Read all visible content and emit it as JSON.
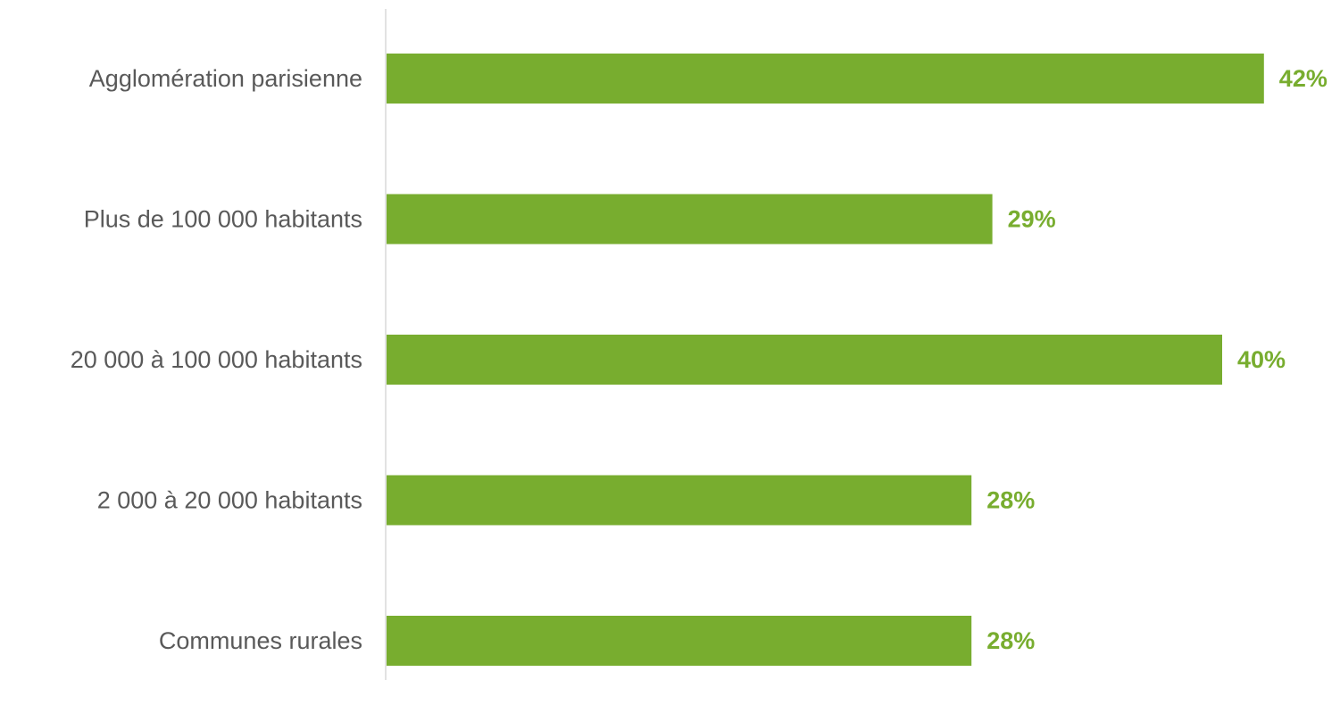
{
  "chart_data": {
    "type": "bar",
    "orientation": "horizontal",
    "categories": [
      "Agglomération parisienne",
      "Plus de 100 000 habitants",
      "20 000 à 100 000 habitants",
      "2 000 à 20 000 habitants",
      "Communes rurales"
    ],
    "values": [
      42,
      29,
      40,
      28,
      28
    ],
    "data_labels": [
      "42%",
      "29%",
      "40%",
      "28%",
      "28%"
    ],
    "unit": "%",
    "title": "",
    "xlabel": "",
    "ylabel": "",
    "grid": false,
    "legend": "none",
    "colors": {
      "bar": "#78ad2f",
      "data_label": "#78ad2f",
      "category_label": "#595959",
      "axis": "#d9d9d9"
    }
  }
}
